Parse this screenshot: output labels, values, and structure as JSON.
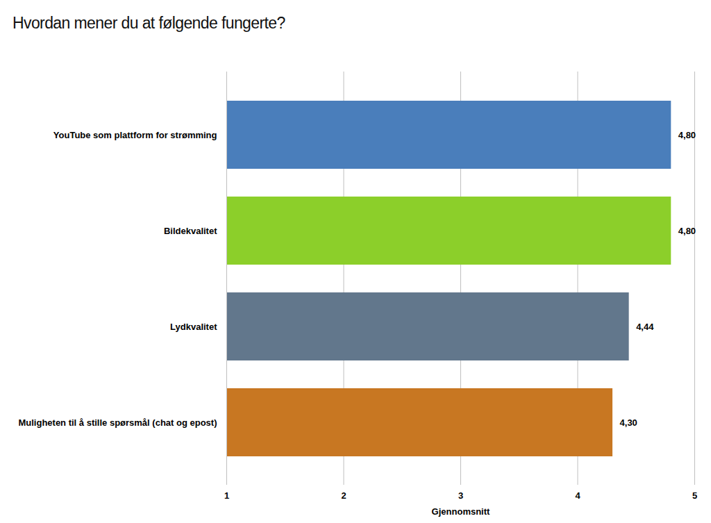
{
  "chart_data": {
    "type": "bar",
    "orientation": "horizontal",
    "title": "Hvordan mener du at følgende fungerte?",
    "x_label": "Gjennomsnitt",
    "categories": [
      "YouTube som plattform for strømming",
      "Bildekvalitet",
      "Lydkvalitet",
      "Muligheten til å stille spørsmål (chat og epost)"
    ],
    "values": [
      4.8,
      4.8,
      4.44,
      4.3
    ],
    "value_labels": [
      "4,80",
      "4,80",
      "4,44",
      "4,30"
    ],
    "colors": [
      "#4a7ebb",
      "#8ccf2a",
      "#62778c",
      "#c87722"
    ],
    "xlim": [
      1,
      5
    ],
    "xticks": [
      1,
      2,
      3,
      4,
      5
    ],
    "grid": true,
    "data_labels": true
  }
}
